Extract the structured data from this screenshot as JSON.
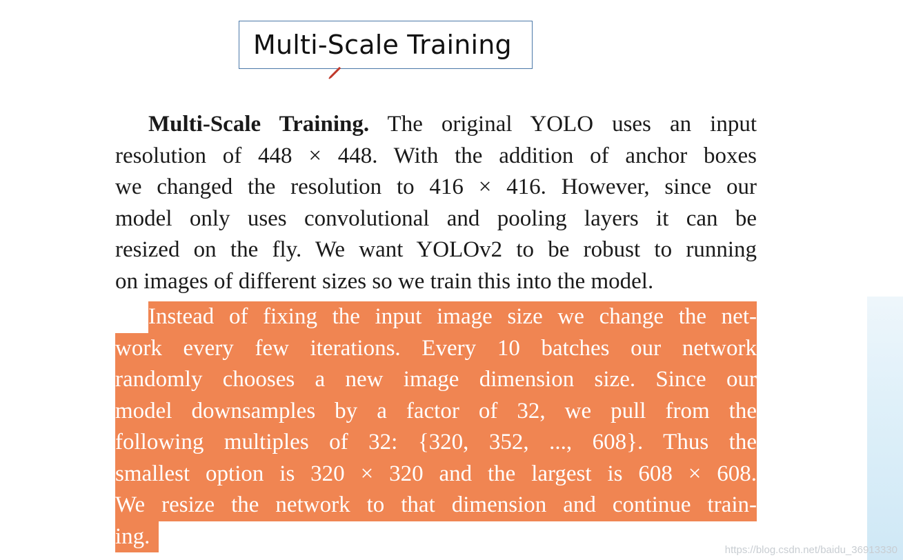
{
  "title_box": {
    "text": "Multi-Scale Training"
  },
  "paragraph1": {
    "heading": "Multi-Scale Training.",
    "lines": [
      "The original YOLO uses an input",
      "resolution of 448 × 448. With the addition of anchor boxes",
      "we changed the resolution to 416 × 416. However, since our",
      "model only uses convolutional and pooling layers it can be",
      "resized on the fly. We want YOLOv2 to be robust to running",
      "on images of different sizes so we train this into the model."
    ]
  },
  "paragraph2_highlighted": {
    "lines": [
      "Instead of fixing the input image size we change the net-",
      "work every few iterations. Every 10 batches our network",
      "randomly chooses a new image dimension size. Since our",
      "model downsamples by a factor of 32, we pull from the",
      "following multiples of 32: {320, 352, ..., 608}. Thus the",
      "smallest option is 320 × 320 and the largest is 608 × 608.",
      "We resize the network to that dimension and continue train-",
      "ing."
    ],
    "highlight_color": "#f08552"
  },
  "watermark": "https://blog.csdn.net/baidu_36913330",
  "colors": {
    "box_border": "#4a78a8",
    "pointer": "#c0392b"
  }
}
